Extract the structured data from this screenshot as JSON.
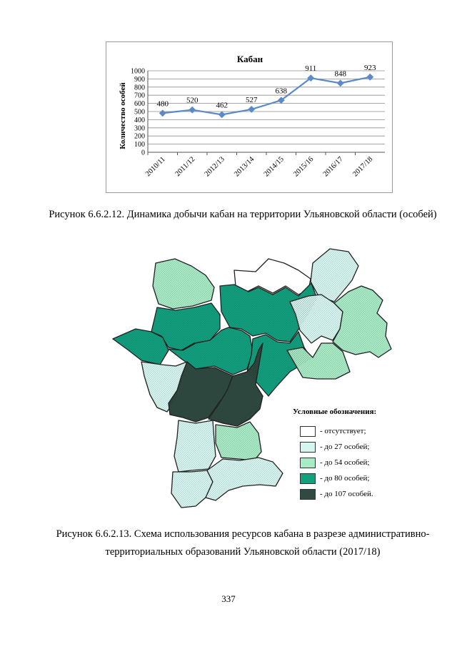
{
  "chart_data": {
    "type": "line",
    "title": "Кабан",
    "xlabel": "",
    "ylabel": "Количество особей",
    "categories": [
      "2010/11",
      "2011/12",
      "2012/13",
      "2013/14",
      "2014/15",
      "2015/16",
      "2016/17",
      "2017/18"
    ],
    "values": [
      480,
      520,
      462,
      527,
      638,
      911,
      848,
      923
    ],
    "ylim": [
      0,
      1000
    ],
    "yticks": [
      0,
      100,
      200,
      300,
      400,
      500,
      600,
      700,
      800,
      900,
      1000
    ],
    "grid": true,
    "series_color": "#5b8ac6"
  },
  "captions": {
    "chart": "Рисунок 6.6.2.12. Динамика добычи кабан на территории Ульяновской области (особей)",
    "map": "Рисунок 6.6.2.13. Схема использования ресурсов кабана в разрезе административно-территориальных образований Ульяновской области (2017/18)"
  },
  "legend": {
    "title": "Условные обозначения:",
    "items": [
      {
        "label": "- отсутствует;",
        "color": "#ffffff"
      },
      {
        "label": "- до 27 особей;",
        "color": "#d6f5f1"
      },
      {
        "label": "- до 54 особей;",
        "color": "#a8ecc6"
      },
      {
        "label": "- до 80 особей;",
        "color": "#12a07f"
      },
      {
        "label": "- до 107 особей.",
        "color": "#2f4a40"
      }
    ]
  },
  "page_number": "337"
}
